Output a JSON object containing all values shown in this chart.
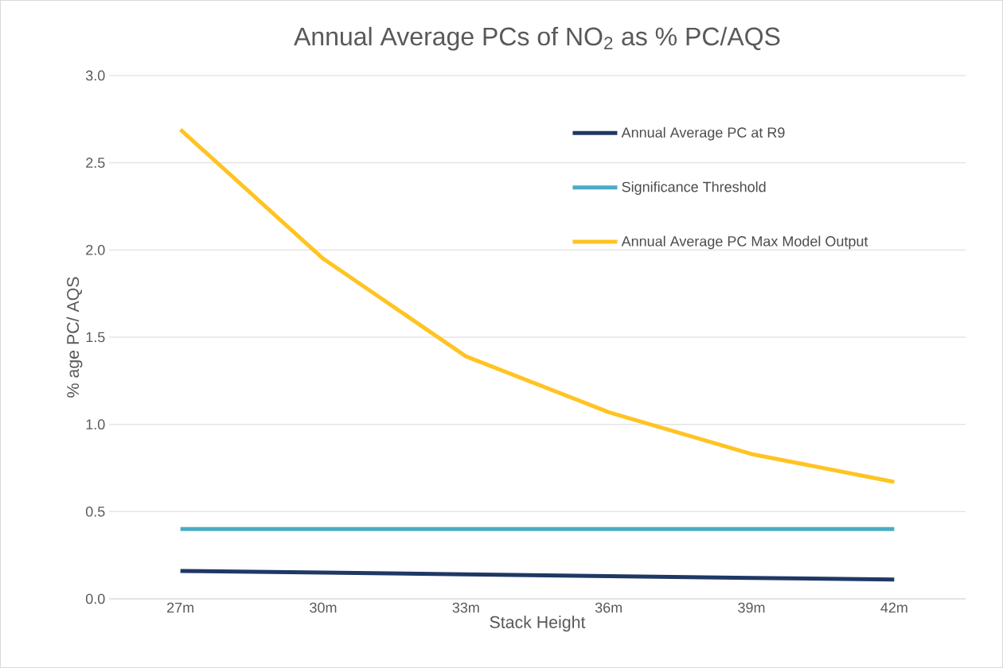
{
  "chart_data": {
    "type": "line",
    "title": "Annual Average PCs of NO$_{2}$ as % PC/AQS",
    "xlabel": "Stack Height",
    "ylabel": "% age PC/ AQS",
    "categories": [
      "27m",
      "30m",
      "33m",
      "36m",
      "39m",
      "42m"
    ],
    "series": [
      {
        "name": "Annual Average PC at R9",
        "color": "#1f3864",
        "values": [
          0.16,
          0.15,
          0.14,
          0.13,
          0.12,
          0.11
        ]
      },
      {
        "name": "Significance Threshold",
        "color": "#4bacc6",
        "values": [
          0.4,
          0.4,
          0.4,
          0.4,
          0.4,
          0.4
        ]
      },
      {
        "name": "Annual Average PC Max Model Output",
        "color": "#ffc423",
        "values": [
          2.69,
          1.95,
          1.39,
          1.07,
          0.83,
          0.67
        ]
      }
    ],
    "ylim": [
      0,
      3
    ],
    "yticks": [
      {
        "value": 0,
        "label": "0.0"
      },
      {
        "value": 0.5,
        "label": "0.5"
      },
      {
        "value": 1,
        "label": "1.0"
      },
      {
        "value": 1.5,
        "label": "1.5"
      },
      {
        "value": 2,
        "label": "2.0"
      },
      {
        "value": 2.5,
        "label": "2.5"
      },
      {
        "value": 3,
        "label": "3.0"
      }
    ],
    "grid": "y",
    "legend": "top right",
    "marker": "none",
    "line_style": "solid"
  }
}
